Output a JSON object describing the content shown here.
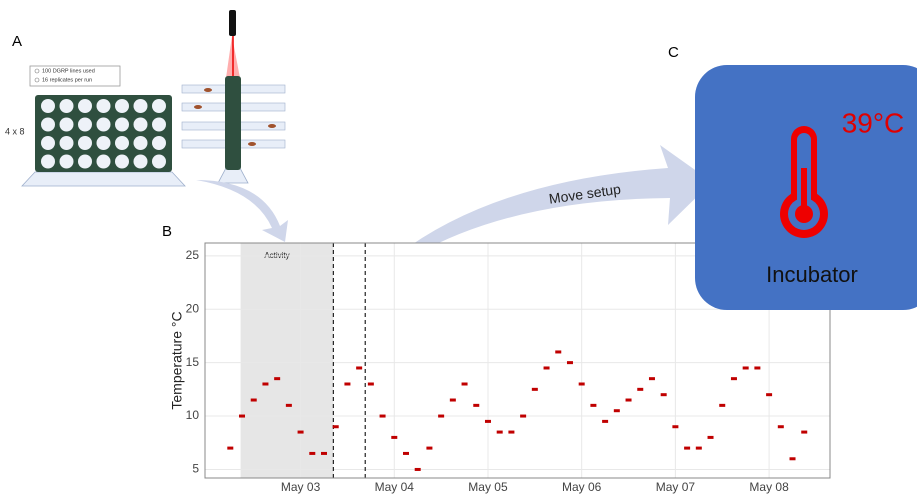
{
  "panel_a": {
    "label": "A",
    "legend": [
      "100 DGRP lines used",
      "16 replicates per run"
    ],
    "grid_label": "4 x 8"
  },
  "panel_b": {
    "label": "B"
  },
  "panel_c": {
    "label": "C",
    "temperature": "39°C",
    "name": "Incubator"
  },
  "arrow_label": "Move setup",
  "chart_data": {
    "type": "line",
    "y_label": "Temperature °C",
    "color": "#c00000",
    "grid": true,
    "highlight": {
      "label": "Activity",
      "range": [
        2.36,
        3.35
      ]
    },
    "vlines": [
      3.35,
      3.69
    ],
    "xlim": [
      1.98,
      8.65
    ],
    "xticks": [
      {
        "value": 3,
        "label": "May 03"
      },
      {
        "value": 4,
        "label": "May 04"
      },
      {
        "value": 5,
        "label": "May 05"
      },
      {
        "value": 6,
        "label": "May 06"
      },
      {
        "value": 7,
        "label": "May 07"
      },
      {
        "value": 8,
        "label": "May 08"
      }
    ],
    "ylim": [
      4.2,
      26.2
    ],
    "yticks": [
      5,
      10,
      15,
      20,
      25
    ],
    "x": [
      2.25,
      2.375,
      2.5,
      2.625,
      2.75,
      2.875,
      3.0,
      3.125,
      3.25,
      3.375,
      3.5,
      3.625,
      3.75,
      3.875,
      4.0,
      4.125,
      4.25,
      4.375,
      4.5,
      4.625,
      4.75,
      4.875,
      5.0,
      5.125,
      5.25,
      5.375,
      5.5,
      5.625,
      5.75,
      5.875,
      6.0,
      6.125,
      6.25,
      6.375,
      6.5,
      6.625,
      6.75,
      6.875,
      7.0,
      7.125,
      7.25,
      7.375,
      7.5,
      7.625,
      7.75,
      7.875,
      8.0,
      8.125,
      8.25,
      8.375
    ],
    "values": [
      7,
      10,
      11.5,
      13,
      13.5,
      11,
      8.5,
      6.5,
      6.5,
      9,
      13,
      14.5,
      13,
      10,
      8,
      6.5,
      5,
      7,
      10,
      11.5,
      13,
      11,
      9.5,
      8.5,
      8.5,
      10,
      12.5,
      14.5,
      16,
      15,
      13,
      11,
      9.5,
      10.5,
      11.5,
      12.5,
      13.5,
      12,
      9,
      7,
      7,
      8,
      11,
      13.5,
      14.5,
      14.5,
      12,
      9,
      6,
      8.5
    ]
  }
}
